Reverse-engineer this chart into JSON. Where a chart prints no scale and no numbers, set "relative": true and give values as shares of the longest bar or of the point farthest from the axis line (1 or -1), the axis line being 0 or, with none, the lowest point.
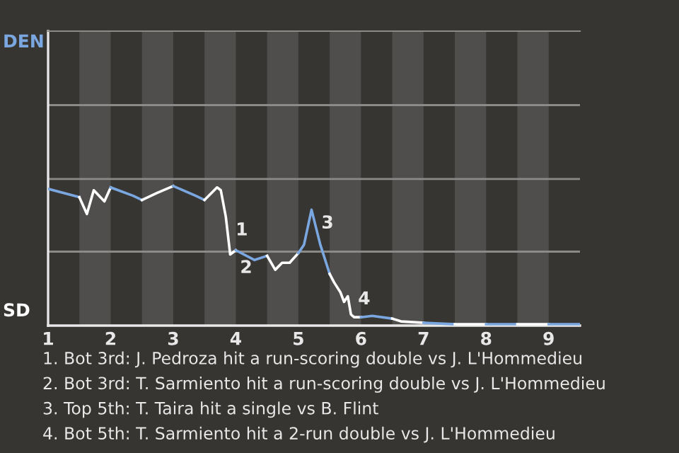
{
  "chart_data": {
    "type": "line",
    "relative": true,
    "xlim": [
      1,
      9.5
    ],
    "xticks": [
      {
        "value": 1,
        "label": "1"
      },
      {
        "value": 2,
        "label": "2"
      },
      {
        "value": 3,
        "label": "3"
      },
      {
        "value": 4,
        "label": "4"
      },
      {
        "value": 5,
        "label": "5"
      },
      {
        "value": 6,
        "label": "6"
      },
      {
        "value": 7,
        "label": "7"
      },
      {
        "value": 8,
        "label": "8"
      },
      {
        "value": 9,
        "label": "9"
      }
    ],
    "tick_labels": "x",
    "marker": "none",
    "line_style": "solid",
    "ref_lines": [
      {
        "axis": "y",
        "value": 0.53,
        "color": "#8a8a88"
      },
      {
        "axis": "y",
        "value": 1.05,
        "color": "#8a8a88"
      },
      {
        "axis": "y",
        "value": 1.58,
        "color": "#8a8a88"
      }
    ],
    "series": [
      {
        "color": "#7ba7e0",
        "x": [
          1.0,
          1.5
        ],
        "values": [
          0.98,
          0.92
        ]
      },
      {
        "color": "#ffffff",
        "x": [
          1.5,
          1.62,
          1.73,
          1.9,
          2.0
        ],
        "values": [
          0.92,
          0.8,
          0.97,
          0.89,
          0.99
        ]
      },
      {
        "color": "#7ba7e0",
        "x": [
          2.0,
          2.36,
          2.5
        ],
        "values": [
          0.99,
          0.93,
          0.9
        ]
      },
      {
        "color": "#ffffff",
        "x": [
          2.5,
          2.74,
          3.0
        ],
        "values": [
          0.9,
          0.95,
          1.0
        ]
      },
      {
        "color": "#7ba7e0",
        "x": [
          3.0,
          3.36,
          3.5
        ],
        "values": [
          1.0,
          0.93,
          0.9
        ]
      },
      {
        "color": "#ffffff",
        "x": [
          3.5,
          3.7,
          3.76,
          3.84,
          3.91,
          4.0
        ],
        "values": [
          0.9,
          0.99,
          0.97,
          0.78,
          0.51,
          0.54
        ]
      },
      {
        "color": "#7ba7e0",
        "x": [
          4.0,
          4.3,
          4.5
        ],
        "values": [
          0.54,
          0.47,
          0.5
        ]
      },
      {
        "color": "#ffffff",
        "x": [
          4.5,
          4.63,
          4.74,
          4.86,
          5.0
        ],
        "values": [
          0.5,
          0.4,
          0.45,
          0.45,
          0.52
        ]
      },
      {
        "color": "#7ba7e0",
        "x": [
          5.0,
          5.09,
          5.21,
          5.35,
          5.5
        ],
        "values": [
          0.52,
          0.58,
          0.83,
          0.58,
          0.37
        ]
      },
      {
        "color": "#ffffff",
        "x": [
          5.5,
          5.57,
          5.67,
          5.73,
          5.79,
          5.84,
          5.89,
          6.0
        ],
        "values": [
          0.37,
          0.31,
          0.24,
          0.17,
          0.21,
          0.08,
          0.06,
          0.06
        ]
      },
      {
        "color": "#7ba7e0",
        "x": [
          6.0,
          6.18,
          6.5
        ],
        "values": [
          0.06,
          0.07,
          0.05
        ]
      },
      {
        "color": "#ffffff",
        "x": [
          6.5,
          6.64,
          7.0
        ],
        "values": [
          0.05,
          0.03,
          0.02
        ]
      },
      {
        "color": "#7ba7e0",
        "x": [
          7.0,
          7.5
        ],
        "values": [
          0.02,
          0.01
        ]
      },
      {
        "color": "#ffffff",
        "x": [
          7.5,
          8.0
        ],
        "values": [
          0.01,
          0.01
        ]
      },
      {
        "color": "#7ba7e0",
        "x": [
          8.0,
          8.5
        ],
        "values": [
          0.01,
          0.01
        ]
      },
      {
        "color": "#ffffff",
        "x": [
          8.5,
          9.0
        ],
        "values": [
          0.01,
          0.01
        ]
      },
      {
        "color": "#7ba7e0",
        "x": [
          9.0,
          9.5
        ],
        "values": [
          0.01,
          0.01
        ]
      }
    ],
    "bands": [
      {
        "axis": "x",
        "from": 1.5,
        "to": 2,
        "color": "#4f4e4c"
      },
      {
        "axis": "x",
        "from": 2.5,
        "to": 3,
        "color": "#4f4e4c"
      },
      {
        "axis": "x",
        "from": 3.5,
        "to": 4,
        "color": "#4f4e4c"
      },
      {
        "axis": "x",
        "from": 4.5,
        "to": 5,
        "color": "#4f4e4c"
      },
      {
        "axis": "x",
        "from": 5.5,
        "to": 6,
        "color": "#4f4e4c"
      },
      {
        "axis": "x",
        "from": 6.5,
        "to": 7,
        "color": "#4f4e4c"
      },
      {
        "axis": "x",
        "from": 7.5,
        "to": 8,
        "color": "#4f4e4c"
      },
      {
        "axis": "x",
        "from": 8.5,
        "to": 9,
        "color": "#4f4e4c"
      }
    ],
    "annotations": [
      "DEN",
      "SD",
      "1. Bot 3rd: J. Pedroza hit a run-scoring double vs J. L'Hommedieu",
      "2. Bot 3rd: T. Sarmiento hit a run-scoring double vs J. L'Hommedieu",
      "3. Top 5th: T. Taira hit a single vs B. Flint",
      "4. Bot 5th: T. Sarmiento hit a 2-run double vs J. L'Hommedieu",
      {
        "text": "1",
        "x": 3.84,
        "y": 0.78
      },
      {
        "text": "2",
        "x": 3.91,
        "y": 0.51
      },
      {
        "text": "3",
        "x": 5.21,
        "y": 0.83
      },
      {
        "text": "4",
        "x": 5.89,
        "y": 0.06
      }
    ]
  }
}
